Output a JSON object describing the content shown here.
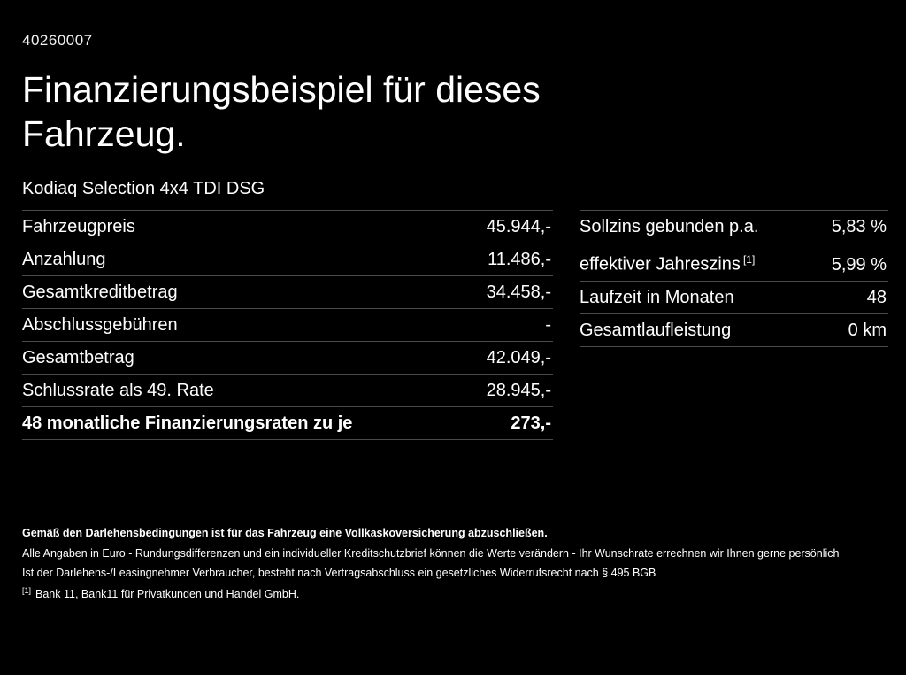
{
  "colors": {
    "background": "#000000",
    "text": "#ffffff",
    "divider": "#4a4a4a"
  },
  "page": {
    "vehicle_id": "40260007",
    "title": "Finanzierungsbeispiel für dieses Fahrzeug.",
    "subtitle": "Kodiaq Selection 4x4 TDI DSG"
  },
  "finance_table": {
    "rows": [
      {
        "label": "Fahrzeugpreis",
        "value": "45.944,-"
      },
      {
        "label": "Anzahlung",
        "value": "11.486,-"
      },
      {
        "label": "Gesamtkreditbetrag",
        "value": "34.458,-"
      },
      {
        "label": "Abschlussgebühren",
        "value": "-"
      },
      {
        "label": "Gesamtbetrag",
        "value": "42.049,-"
      },
      {
        "label": "Schlussrate als 49. Rate",
        "value": "28.945,-"
      },
      {
        "label": "48 monatliche Finanzierungsraten zu je",
        "value": "273,-"
      }
    ]
  },
  "conditions_table": {
    "rows": [
      {
        "label": "Sollzins gebunden p.a.",
        "value": "5,83 %"
      },
      {
        "label": "effektiver Jahreszins",
        "sup": "[1]",
        "value": "5,99 %"
      },
      {
        "label": "Laufzeit in Monaten",
        "value": "48"
      },
      {
        "label": "Gesamtlaufleistung",
        "value": "0 km"
      }
    ]
  },
  "footer": {
    "insurance_note": "Gemäß den Darlehensbedingungen ist für das Fahrzeug eine Vollkaskoversicherung abzuschließen.",
    "disclaimer1": "Alle Angaben in Euro - Rundungsdifferenzen und ein individueller Kreditschutzbrief können die Werte verändern - Ihr Wunschrate errechnen wir Ihnen gerne persönlich",
    "disclaimer2": "Ist der Darlehens-/Leasingnehmer Verbraucher, besteht nach Vertragsabschluss ein gesetzliches Widerrufsrecht nach § 495 BGB",
    "footnote_ref": "[1]",
    "footnote_text": "Bank 11, Bank11 für Privatkunden und Handel GmbH."
  }
}
